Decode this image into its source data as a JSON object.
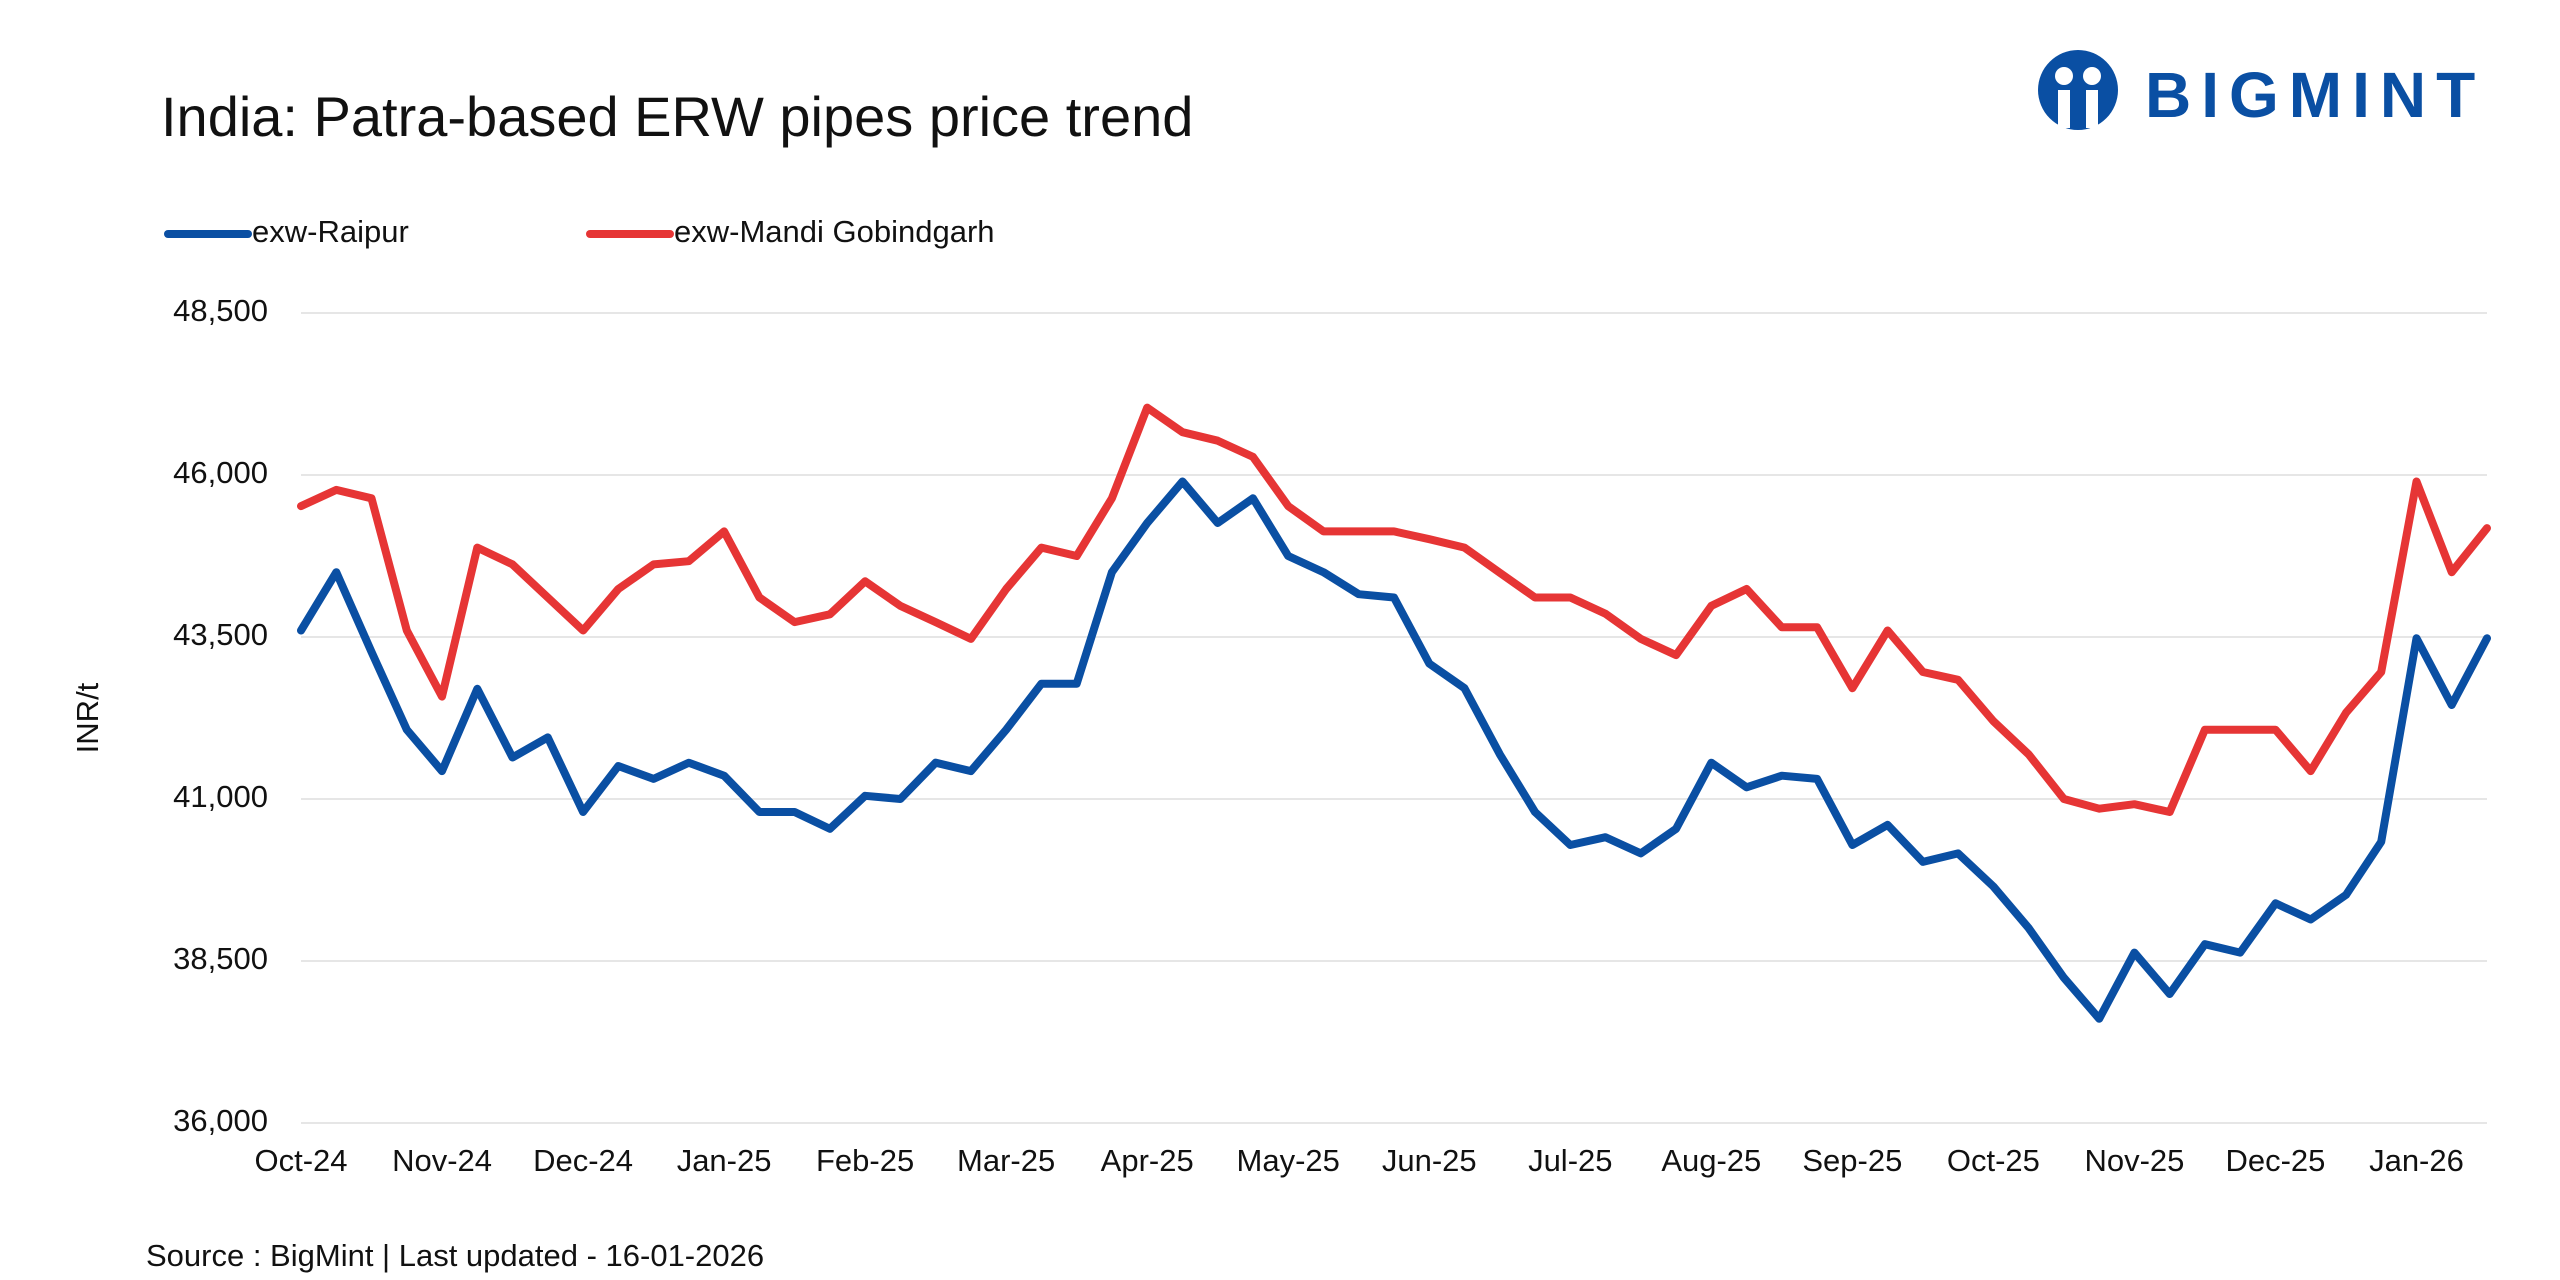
{
  "logo": "BIGMINT",
  "chart_data": {
    "type": "line",
    "title": "India: Patra-based ERW pipes price trend",
    "source": "Source : BigMint | Last updated - 16-01-2026",
    "y_label": "INR/t",
    "categories": [
      "Oct-24",
      null,
      null,
      null,
      "Nov-24",
      null,
      null,
      null,
      "Dec-24",
      null,
      null,
      null,
      "Jan-25",
      null,
      null,
      null,
      "Feb-25",
      null,
      null,
      null,
      "Mar-25",
      null,
      null,
      null,
      "Apr-25",
      null,
      null,
      null,
      "May-25",
      null,
      null,
      null,
      "Jun-25",
      null,
      null,
      null,
      "Jul-25",
      null,
      null,
      null,
      "Aug-25",
      null,
      null,
      null,
      "Sep-25",
      null,
      null,
      null,
      "Oct-25",
      null,
      null,
      null,
      "Nov-25",
      null,
      null,
      null,
      "Dec-25",
      null,
      null,
      null,
      "Jan-26",
      null,
      null
    ],
    "series": [
      {
        "name": "exw-Raipur",
        "color": "#0a4fa3",
        "values": [
          43600,
          44500,
          43270,
          42070,
          41430,
          42700,
          41640,
          41950,
          40800,
          41510,
          41310,
          41560,
          41360,
          40800,
          40800,
          40540,
          41050,
          41000,
          41560,
          41430,
          42070,
          42780,
          42780,
          44500,
          45260,
          45900,
          45260,
          45640,
          44750,
          44500,
          44160,
          44110,
          43090,
          42710,
          41690,
          40800,
          40290,
          40410,
          40160,
          40540,
          41560,
          41180,
          41360,
          41310,
          40290,
          40600,
          40030,
          40160,
          39650,
          39010,
          38240,
          37610,
          38630,
          37990,
          38760,
          38630,
          39390,
          39140,
          39520,
          40340,
          43480,
          42450,
          43480
        ]
      },
      {
        "name": "exw-Mandi Gobindgarh",
        "color": "#e63535",
        "values": [
          45520,
          45770,
          45640,
          43600,
          42580,
          44880,
          44620,
          44110,
          43600,
          44240,
          44620,
          44670,
          45130,
          44110,
          43730,
          43850,
          44360,
          43980,
          43730,
          43470,
          44240,
          44880,
          44750,
          45640,
          47040,
          46660,
          46530,
          46280,
          45520,
          45130,
          45130,
          45130,
          45010,
          44880,
          44490,
          44110,
          44110,
          43860,
          43470,
          43220,
          43980,
          44240,
          43650,
          43650,
          42710,
          43600,
          42960,
          42840,
          42200,
          41690,
          41000,
          40850,
          40920,
          40800,
          42070,
          42070,
          42070,
          41430,
          42330,
          42960,
          45900,
          44500,
          45180
        ]
      }
    ],
    "ylim": [
      36000,
      48500
    ],
    "yticks": [
      {
        "value": 36000,
        "label": "36,000"
      },
      {
        "value": 38500,
        "label": "38,500"
      },
      {
        "value": 41000,
        "label": "41,000"
      },
      {
        "value": 43500,
        "label": "43,500"
      },
      {
        "value": 46000,
        "label": "46,000"
      },
      {
        "value": 48500,
        "label": "48,500"
      }
    ],
    "grid": true
  }
}
